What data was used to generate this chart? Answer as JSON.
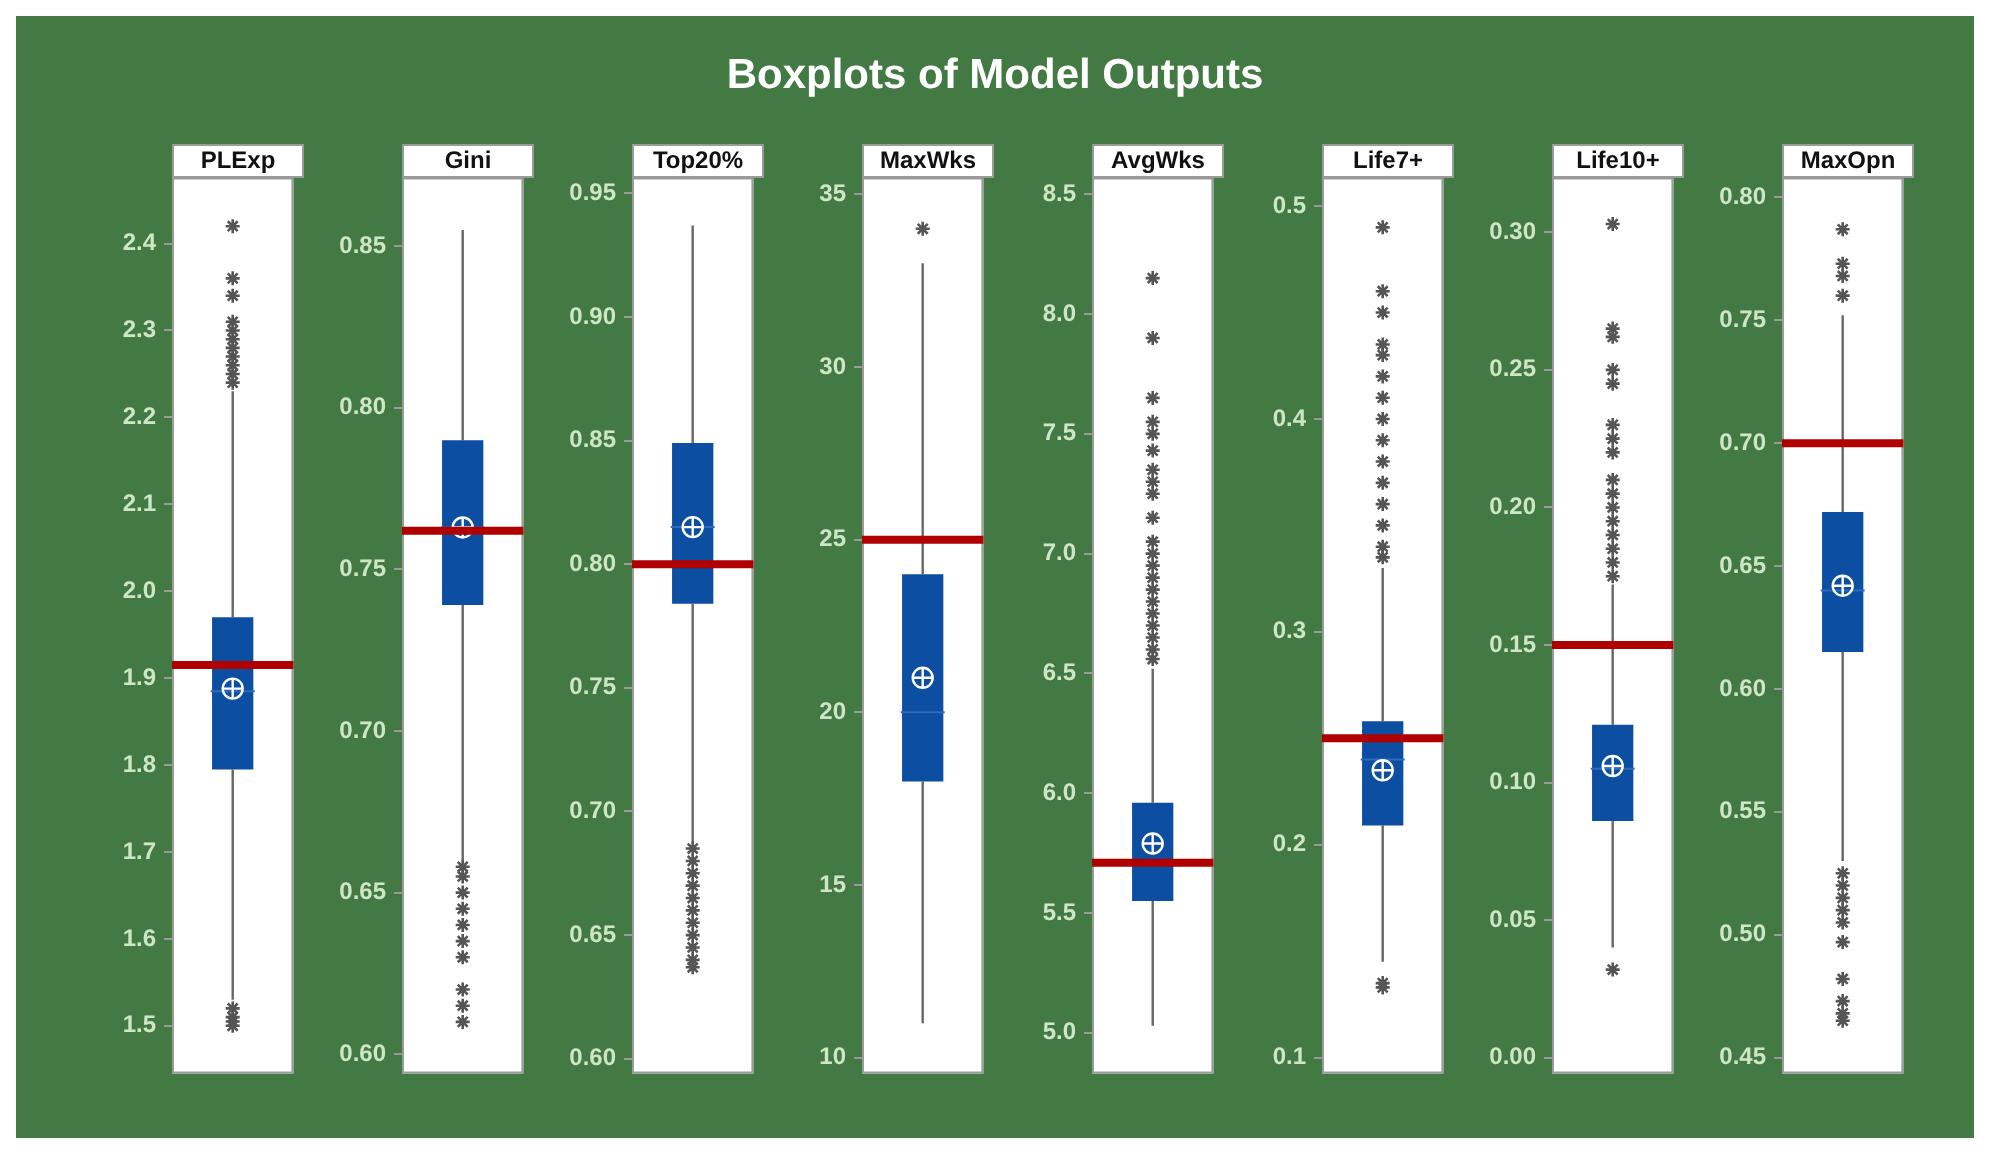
{
  "chart_data": [
    {
      "type": "other",
      "title": "Boxplots of Model Outputs"
    },
    {
      "type": "box",
      "title": "PLExp",
      "categories": [
        null
      ],
      "color": "#0b4ea2",
      "tick_labels": "y",
      "ylim": [
        1.445,
        2.475
      ],
      "yticks": [
        1.5,
        1.6,
        1.7,
        1.8,
        1.9,
        {
          "value": 2,
          "label": "2.0"
        },
        2.1,
        2.2,
        2.3,
        2.4
      ],
      "boxes": [
        {
          "low": 1.53,
          "q1": 1.795,
          "median": 1.885,
          "q3": 1.97,
          "high": 2.23,
          "mean": 1.888,
          "outliers": [
            1.5,
            1.505,
            1.51,
            1.52,
            2.24,
            2.25,
            2.26,
            2.27,
            2.28,
            2.29,
            2.3,
            2.31,
            2.34,
            2.36,
            2.42
          ]
        }
      ],
      "ref_lines": [
        {
          "axis": "y",
          "value": 1.915,
          "color": "#b00000"
        }
      ]
    },
    {
      "type": "box",
      "title": "Gini",
      "categories": [
        null
      ],
      "color": "#0b4ea2",
      "tick_labels": "y",
      "ylim": [
        0.594,
        0.871
      ],
      "yticks": [
        {
          "value": 0.6,
          "label": "0.60"
        },
        0.65,
        {
          "value": 0.7,
          "label": "0.70"
        },
        0.75,
        {
          "value": 0.8,
          "label": "0.80"
        },
        0.85
      ],
      "boxes": [
        {
          "low": 0.66,
          "q1": 0.739,
          "median": 0.763,
          "q3": 0.79,
          "high": 0.855,
          "mean": 0.763,
          "outliers": [
            0.61,
            0.615,
            0.62,
            0.63,
            0.635,
            0.64,
            0.645,
            0.65,
            0.655,
            0.658
          ]
        }
      ],
      "ref_lines": [
        {
          "axis": "y",
          "value": 0.762,
          "color": "#b00000"
        }
      ]
    },
    {
      "type": "box",
      "title": "Top20%",
      "categories": [
        null
      ],
      "color": "#0b4ea2",
      "tick_labels": "y",
      "ylim": [
        0.594,
        0.956
      ],
      "yticks": [
        {
          "value": 0.6,
          "label": "0.60"
        },
        0.65,
        {
          "value": 0.7,
          "label": "0.70"
        },
        0.75,
        {
          "value": 0.8,
          "label": "0.80"
        },
        0.85,
        {
          "value": 0.9,
          "label": "0.90"
        },
        0.95
      ],
      "boxes": [
        {
          "low": 0.687,
          "q1": 0.784,
          "median": 0.815,
          "q3": 0.849,
          "high": 0.937,
          "mean": 0.815,
          "outliers": [
            0.637,
            0.64,
            0.645,
            0.65,
            0.655,
            0.66,
            0.665,
            0.67,
            0.675,
            0.68,
            0.685
          ]
        }
      ],
      "ref_lines": [
        {
          "axis": "y",
          "value": 0.8,
          "color": "#b00000"
        }
      ]
    },
    {
      "type": "box",
      "title": "MaxWks",
      "categories": [
        null
      ],
      "color": "#0b4ea2",
      "tick_labels": "y",
      "ylim": [
        9.54,
        35.46
      ],
      "yticks": [
        10,
        15,
        20,
        25,
        30,
        35
      ],
      "boxes": [
        {
          "low": 11,
          "q1": 18,
          "median": 20,
          "q3": 24,
          "high": 33,
          "mean": 21,
          "outliers": [
            34
          ]
        }
      ],
      "ref_lines": [
        {
          "axis": "y",
          "value": 25,
          "color": "#b00000"
        }
      ]
    },
    {
      "type": "box",
      "title": "AvgWks",
      "categories": [
        null
      ],
      "color": "#0b4ea2",
      "tick_labels": "y",
      "ylim": [
        4.83,
        8.566
      ],
      "yticks": [
        {
          "value": 5,
          "label": "5.0"
        },
        5.5,
        {
          "value": 6,
          "label": "6.0"
        },
        6.5,
        {
          "value": 7,
          "label": "7.0"
        },
        7.5,
        {
          "value": 8,
          "label": "8.0"
        },
        8.5
      ],
      "boxes": [
        {
          "low": 5.03,
          "q1": 5.55,
          "median": 5.72,
          "q3": 5.96,
          "high": 6.52,
          "mean": 5.79,
          "outliers": [
            6.56,
            6.6,
            6.65,
            6.7,
            6.75,
            6.8,
            6.85,
            6.9,
            6.95,
            7.0,
            7.05,
            7.15,
            7.25,
            7.3,
            7.35,
            7.43,
            7.5,
            7.55,
            7.65,
            7.9,
            8.15
          ]
        }
      ],
      "ref_lines": [
        {
          "axis": "y",
          "value": 5.71,
          "color": "#b00000"
        }
      ]
    },
    {
      "type": "box",
      "title": "Life7+",
      "categories": [
        null
      ],
      "color": "#0b4ea2",
      "tick_labels": "y",
      "ylim": [
        0.0925,
        0.513
      ],
      "yticks": [
        0.1,
        0.2,
        0.3,
        0.4,
        0.5
      ],
      "boxes": [
        {
          "low": 0.145,
          "q1": 0.209,
          "median": 0.24,
          "q3": 0.258,
          "high": 0.33,
          "mean": 0.235,
          "outliers": [
            0.133,
            0.135,
            0.335,
            0.34,
            0.35,
            0.36,
            0.37,
            0.38,
            0.39,
            0.4,
            0.41,
            0.42,
            0.43,
            0.435,
            0.45,
            0.46,
            0.49
          ]
        }
      ],
      "ref_lines": [
        {
          "axis": "y",
          "value": 0.25,
          "color": "#b00000"
        }
      ]
    },
    {
      "type": "box",
      "title": "Life10+",
      "categories": [
        null
      ],
      "color": "#0b4ea2",
      "tick_labels": "y",
      "ylim": [
        -0.0058,
        0.3196
      ],
      "yticks": [
        {
          "value": 0,
          "label": "0.00"
        },
        0.05,
        {
          "value": 0.1,
          "label": "0.10"
        },
        0.15,
        {
          "value": 0.2,
          "label": "0.20"
        },
        0.25,
        {
          "value": 0.3,
          "label": "0.30"
        }
      ],
      "boxes": [
        {
          "low": 0.04,
          "q1": 0.086,
          "median": 0.105,
          "q3": 0.121,
          "high": 0.172,
          "mean": 0.106,
          "outliers": [
            0.032,
            0.175,
            0.18,
            0.185,
            0.19,
            0.195,
            0.2,
            0.205,
            0.21,
            0.22,
            0.225,
            0.23,
            0.245,
            0.25,
            0.262,
            0.265,
            0.303
          ]
        }
      ],
      "ref_lines": [
        {
          "axis": "y",
          "value": 0.15,
          "color": "#b00000"
        }
      ]
    },
    {
      "type": "box",
      "title": "MaxOpn",
      "categories": [
        null
      ],
      "color": "#0b4ea2",
      "tick_labels": "y",
      "ylim": [
        0.4435,
        0.8077
      ],
      "yticks": [
        0.45,
        {
          "value": 0.5,
          "label": "0.50"
        },
        0.55,
        {
          "value": 0.6,
          "label": "0.60"
        },
        0.65,
        {
          "value": 0.7,
          "label": "0.70"
        },
        0.75,
        {
          "value": 0.8,
          "label": "0.80"
        }
      ],
      "boxes": [
        {
          "low": 0.53,
          "q1": 0.615,
          "median": 0.64,
          "q3": 0.672,
          "high": 0.752,
          "mean": 0.642,
          "outliers": [
            0.465,
            0.468,
            0.473,
            0.482,
            0.497,
            0.505,
            0.51,
            0.515,
            0.52,
            0.525,
            0.76,
            0.768,
            0.773,
            0.787
          ]
        }
      ],
      "ref_lines": [
        {
          "axis": "y",
          "value": 0.7,
          "color": "#b00000"
        }
      ]
    }
  ]
}
